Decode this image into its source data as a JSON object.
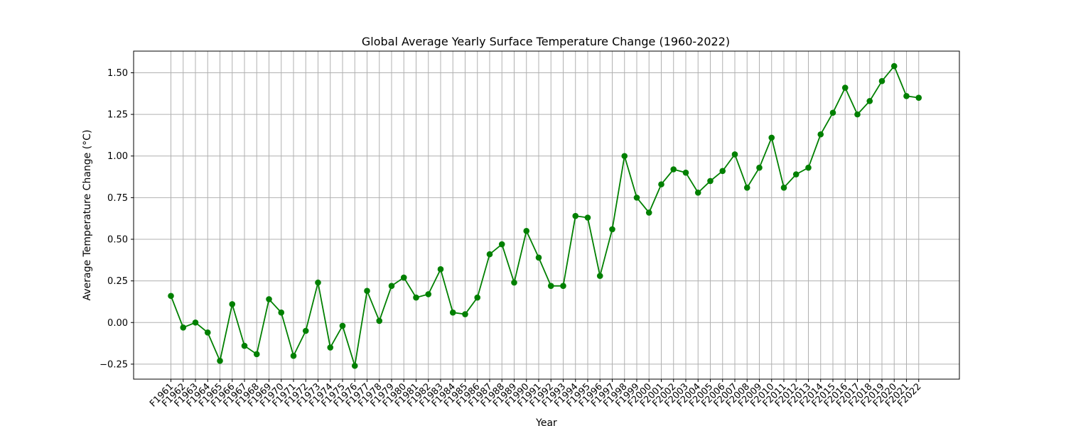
{
  "chart_data": {
    "type": "line",
    "title": "Global Average Yearly Surface Temperature Change (1960-2022)",
    "xlabel": "Year",
    "ylabel": "Average Temperature Change (°C)",
    "ylim": [
      -0.34,
      1.63
    ],
    "yticks": [
      "−0.25",
      "0.00",
      "0.25",
      "0.50",
      "0.75",
      "1.00",
      "1.25",
      "1.50"
    ],
    "ytick_values": [
      -0.25,
      0,
      0.25,
      0.5,
      0.75,
      1.0,
      1.25,
      1.5
    ],
    "grid": true,
    "color": "#008000",
    "categories": [
      "F1961",
      "F1962",
      "F1963",
      "F1964",
      "F1965",
      "F1966",
      "F1967",
      "F1968",
      "F1969",
      "F1970",
      "F1971",
      "F1972",
      "F1973",
      "F1974",
      "F1975",
      "F1976",
      "F1977",
      "F1978",
      "F1979",
      "F1980",
      "F1981",
      "F1982",
      "F1983",
      "F1984",
      "F1985",
      "F1986",
      "F1987",
      "F1988",
      "F1989",
      "F1990",
      "F1991",
      "F1992",
      "F1993",
      "F1994",
      "F1995",
      "F1996",
      "F1997",
      "F1998",
      "F1999",
      "F2000",
      "F2001",
      "F2002",
      "F2003",
      "F2004",
      "F2005",
      "F2006",
      "F2007",
      "F2008",
      "F2009",
      "F2010",
      "F2011",
      "F2012",
      "F2013",
      "F2014",
      "F2015",
      "F2016",
      "F2017",
      "F2018",
      "F2019",
      "F2020",
      "F2021",
      "F2022"
    ],
    "values": [
      0.16,
      -0.03,
      0.0,
      -0.06,
      -0.23,
      0.11,
      -0.14,
      -0.19,
      0.14,
      0.06,
      -0.2,
      -0.05,
      0.24,
      -0.15,
      -0.02,
      -0.26,
      0.19,
      0.01,
      0.22,
      0.27,
      0.15,
      0.17,
      0.32,
      0.06,
      0.05,
      0.15,
      0.41,
      0.47,
      0.24,
      0.55,
      0.39,
      0.22,
      0.22,
      0.64,
      0.63,
      0.28,
      0.56,
      1.0,
      0.75,
      0.66,
      0.83,
      0.92,
      0.9,
      0.78,
      0.85,
      0.91,
      1.01,
      0.81,
      0.93,
      1.11,
      0.81,
      0.89,
      0.93,
      1.13,
      1.26,
      1.41,
      1.25,
      1.33,
      1.45,
      1.54,
      1.36,
      1.35
    ]
  }
}
